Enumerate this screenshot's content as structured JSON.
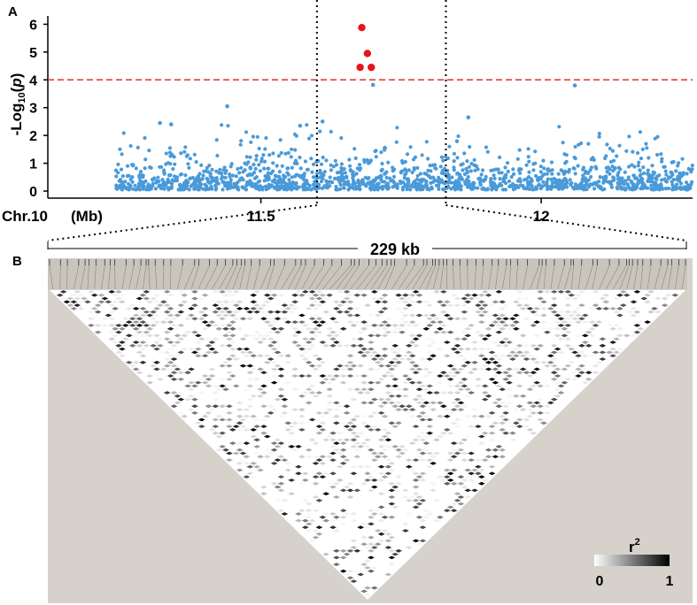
{
  "panels": {
    "a_label": "A",
    "b_label": "B"
  },
  "colors": {
    "points": "#4a9ad9",
    "significant": "#e8141b",
    "threshold": "#e03030",
    "ld_background": "#d6d2cb",
    "ld_tracks": "#c9c5bd"
  },
  "chart_data": [
    {
      "type": "scatter",
      "title": "",
      "ylabel": "-Log10(p)",
      "ylabel_parts": {
        "prefix": "-Log",
        "sub": "10",
        "paren_open": "(",
        "p": "p",
        "paren_close": ")"
      },
      "xlabel": "Chr.10  (Mb)",
      "xlabel_parts": {
        "chromosome": "Chr.10",
        "unit": "(Mb)"
      },
      "xlim": [
        11.12,
        12.27
      ],
      "ylim": [
        0,
        6.3
      ],
      "yticks": [
        0,
        1,
        2,
        3,
        4,
        5,
        6
      ],
      "xticks": [
        11.5,
        12
      ],
      "xtick_labels": [
        "11.5",
        "12"
      ],
      "threshold": 4,
      "region": {
        "start": 11.6,
        "end": 11.83,
        "size_label": "229 kb"
      },
      "peak_points": [
        {
          "x": 11.68,
          "y": 5.88
        },
        {
          "x": 11.69,
          "y": 4.95
        },
        {
          "x": 11.677,
          "y": 4.45
        },
        {
          "x": 11.697,
          "y": 4.45
        }
      ],
      "notable_points": [
        {
          "x": 11.44,
          "y": 3.05
        },
        {
          "x": 11.7,
          "y": 3.82
        },
        {
          "x": 12.06,
          "y": 3.8
        },
        {
          "x": 11.87,
          "y": 2.65
        },
        {
          "x": 11.32,
          "y": 2.45
        },
        {
          "x": 11.34,
          "y": 2.4
        },
        {
          "x": 11.57,
          "y": 2.35
        },
        {
          "x": 11.61,
          "y": 2.5
        }
      ],
      "background_points": {
        "count": 1500,
        "description_levels": "dense band of p-values between 0 and 2.5 across the region",
        "x_range": [
          11.24,
          12.27
        ],
        "typical_max": 2.5
      }
    },
    {
      "type": "heatmap",
      "title": "",
      "legend": {
        "title": "r",
        "title_sup": "2",
        "min_label": "0",
        "max_label": "1"
      },
      "description": "Linkage disequilibrium triangle (pairwise r-squared) for SNPs in the 229 kb region",
      "snp_count": 92,
      "scale": [
        0,
        1
      ]
    }
  ]
}
